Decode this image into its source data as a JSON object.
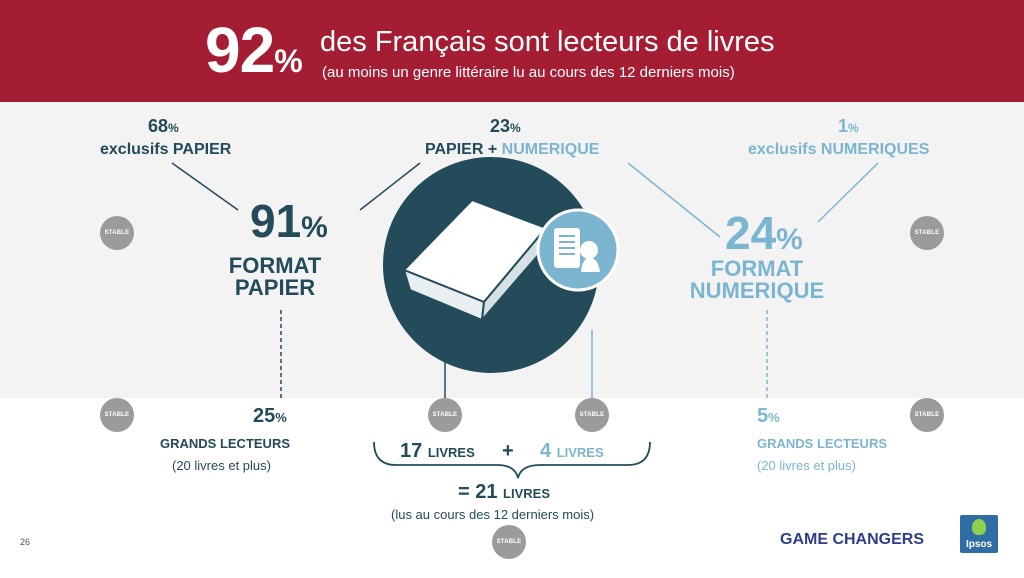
{
  "header": {
    "big_percent": "92",
    "big_percent_unit": "%",
    "headline": "des Français sont lecteurs de livres",
    "subline": "(au moins un genre littéraire lu au cours des 12 derniers mois)"
  },
  "left": {
    "excl_value": "68",
    "excl_unit": "%",
    "excl_label": "exclusifs PAPIER",
    "format_value": "91",
    "format_unit": "%",
    "format_line1": "FORMAT",
    "format_line2": "PAPIER",
    "gl_value": "25",
    "gl_unit": "%",
    "gl_label": "GRANDS LECTEURS",
    "gl_sub": "(20 livres et plus)"
  },
  "center": {
    "both_value": "23",
    "both_unit": "%",
    "both_label_a": "PAPIER",
    "both_plus": "+",
    "both_label_b": "NUMERIQUE",
    "books_a_value": "17",
    "books_a_unit": "LIVRES",
    "books_plus": "+",
    "books_b_value": "4",
    "books_b_unit": "LIVRES",
    "total_prefix": "= 21",
    "total_unit": "LIVRES",
    "total_sub": "(lus au cours des 12 derniers mois)"
  },
  "right": {
    "excl_value": "1",
    "excl_unit": "%",
    "excl_label": "exclusifs NUMERIQUES",
    "format_value": "24",
    "format_unit": "%",
    "format_line1": "FORMAT",
    "format_line2": "NUMERIQUE",
    "gl_value": "5",
    "gl_unit": "%",
    "gl_label": "GRANDS LECTEURS",
    "gl_sub": "(20 livres et plus)"
  },
  "badge_text": "STABLE",
  "footer": {
    "page_number": "26",
    "tagline": "GAME CHANGERS",
    "logo_text": "Ipsos"
  },
  "colors": {
    "banner": "#a51d32",
    "dark_teal": "#234b5a",
    "light_blue": "#7cb5d0",
    "badge_grey": "#9b9b9b"
  }
}
